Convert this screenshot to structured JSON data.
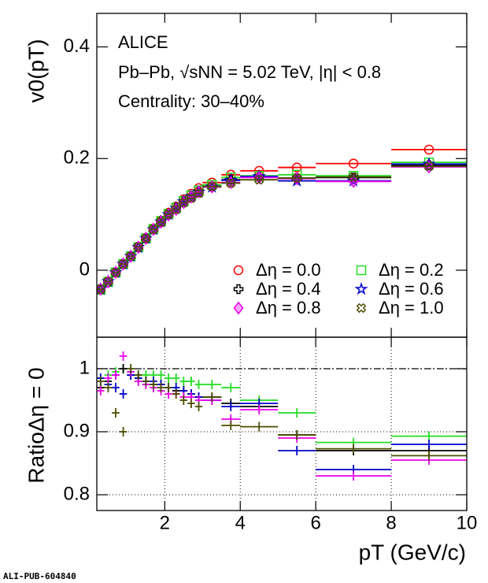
{
  "chart_data": [
    {
      "type": "scatter",
      "ylabel": "v0(pT)",
      "annotations": [
        "ALICE",
        "Pb–Pb, √sNN = 5.02 TeV, |η| < 0.8",
        "Centrality: 30–40%"
      ],
      "bin_edges": [
        0.2,
        0.4,
        0.6,
        0.8,
        1.0,
        1.2,
        1.4,
        1.6,
        1.8,
        2.0,
        2.2,
        2.4,
        2.6,
        2.8,
        3.0,
        3.5,
        4.0,
        5.0,
        6.0,
        8.0,
        10.0
      ],
      "xlim": [
        0.2,
        10
      ],
      "xticks": [
        2,
        4,
        6,
        8,
        10
      ],
      "ylim": [
        -0.12,
        0.46
      ],
      "yticks": [
        0,
        0.2,
        0.4
      ],
      "legend": "lower right",
      "series": [
        {
          "name": "Δη = 0.0",
          "color": "#ff0000",
          "marker": "circle",
          "values": [
            -0.035,
            -0.021,
            -0.004,
            0.011,
            0.025,
            0.042,
            0.058,
            0.075,
            0.089,
            0.103,
            0.114,
            0.127,
            0.137,
            0.147,
            0.157,
            0.171,
            0.178,
            0.184,
            0.191,
            0.216
          ]
        },
        {
          "name": "Δη = 0.2",
          "color": "#22dd22",
          "marker": "square",
          "values": [
            -0.035,
            -0.021,
            -0.004,
            0.011,
            0.025,
            0.041,
            0.057,
            0.074,
            0.088,
            0.101,
            0.112,
            0.124,
            0.134,
            0.143,
            0.153,
            0.166,
            0.169,
            0.171,
            0.169,
            0.193
          ]
        },
        {
          "name": "Δη = 0.4",
          "color": "#000000",
          "marker": "cross",
          "values": [
            -0.034,
            -0.021,
            -0.004,
            0.011,
            0.025,
            0.041,
            0.057,
            0.073,
            0.087,
            0.1,
            0.111,
            0.123,
            0.132,
            0.141,
            0.15,
            0.162,
            0.167,
            0.165,
            0.166,
            0.188
          ]
        },
        {
          "name": "Δη = 0.6",
          "color": "#0000cc",
          "marker": "star",
          "values": [
            -0.034,
            -0.02,
            -0.004,
            0.011,
            0.025,
            0.041,
            0.057,
            0.073,
            0.087,
            0.1,
            0.111,
            0.123,
            0.132,
            0.14,
            0.149,
            0.161,
            0.168,
            0.16,
            0.16,
            0.19
          ]
        },
        {
          "name": "Δη = 0.8",
          "color": "#ee00ee",
          "marker": "diamond",
          "values": [
            -0.034,
            -0.021,
            -0.004,
            0.011,
            0.025,
            0.041,
            0.057,
            0.073,
            0.086,
            0.099,
            0.109,
            0.121,
            0.131,
            0.14,
            0.149,
            0.157,
            0.166,
            0.164,
            0.159,
            0.185
          ]
        },
        {
          "name": "Δη = 1.0",
          "color": "#4d4d00",
          "marker": "xcross",
          "values": [
            -0.034,
            -0.02,
            -0.004,
            0.011,
            0.025,
            0.042,
            0.057,
            0.073,
            0.086,
            0.1,
            0.109,
            0.121,
            0.129,
            0.138,
            0.15,
            0.156,
            0.162,
            0.165,
            0.167,
            0.186
          ]
        }
      ]
    },
    {
      "type": "scatter",
      "ylabel": "RatioΔη = 0",
      "xlabel": "pT (GeV/c)",
      "footer": "ALI-PUB-604840",
      "bin_edges": [
        0.2,
        0.4,
        0.6,
        0.8,
        1.0,
        1.2,
        1.4,
        1.6,
        1.8,
        2.0,
        2.2,
        2.4,
        2.6,
        2.8,
        3.0,
        3.5,
        4.0,
        5.0,
        6.0,
        8.0,
        10.0
      ],
      "xlim": [
        0.2,
        10
      ],
      "xticks": [
        2,
        4,
        6,
        8,
        10
      ],
      "ylim": [
        0.775,
        1.05
      ],
      "yticks": [
        0.8,
        0.9,
        1
      ],
      "grid": true,
      "reference_line": 1,
      "series": [
        {
          "color": "#22dd22",
          "values": [
            0.985,
            0.99,
            0.995,
            1.0,
            0.995,
            0.99,
            0.99,
            0.99,
            0.99,
            0.985,
            0.985,
            0.98,
            0.98,
            0.975,
            0.975,
            0.97,
            0.95,
            0.93,
            0.883,
            0.893
          ]
        },
        {
          "color": "#000000",
          "values": [
            0.97,
            0.98,
            0.99,
            1.0,
            0.99,
            0.985,
            0.98,
            0.975,
            0.975,
            0.97,
            0.965,
            0.965,
            0.96,
            0.955,
            0.955,
            0.945,
            0.94,
            0.895,
            0.87,
            0.87
          ]
        },
        {
          "color": "#0000cc",
          "values": [
            0.985,
            0.975,
            0.97,
            0.96,
            0.99,
            0.985,
            0.98,
            0.98,
            0.975,
            0.97,
            0.97,
            0.965,
            0.96,
            0.955,
            0.95,
            0.94,
            0.945,
            0.87,
            0.84,
            0.88
          ]
        },
        {
          "color": "#ee00ee",
          "values": [
            0.965,
            0.985,
            0.99,
            1.02,
            0.995,
            0.98,
            0.975,
            0.97,
            0.965,
            0.96,
            0.96,
            0.955,
            0.955,
            0.95,
            0.95,
            0.92,
            0.935,
            0.89,
            0.83,
            0.855
          ]
        },
        {
          "color": "#4d4d00",
          "values": [
            0.98,
            0.97,
            0.93,
            0.9,
            1.0,
            0.99,
            0.98,
            0.975,
            0.97,
            0.97,
            0.96,
            0.95,
            0.945,
            0.94,
            0.955,
            0.91,
            0.908,
            0.895,
            0.873,
            0.862
          ]
        }
      ]
    }
  ]
}
